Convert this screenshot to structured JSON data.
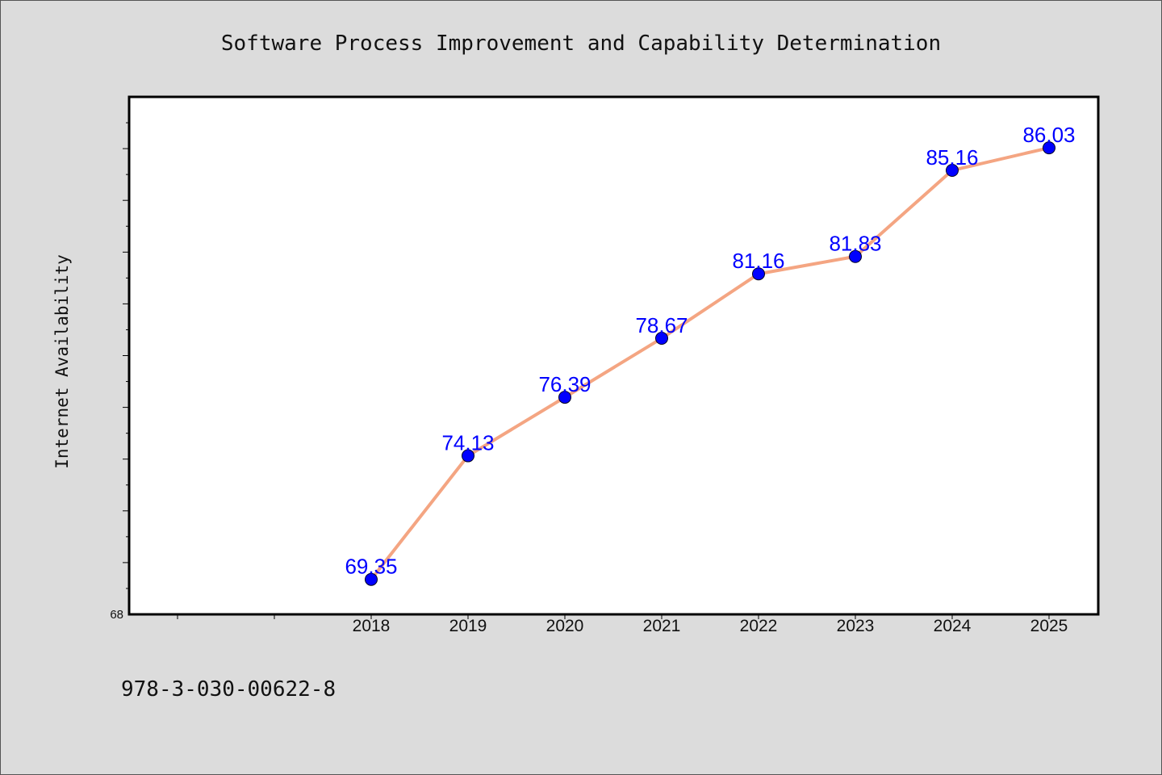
{
  "chart_data": {
    "type": "line",
    "title": "Software Process Improvement and Capability Determination",
    "xlabel": "",
    "ylabel": "Internet Availability",
    "categories": [
      "2018",
      "2019",
      "2020",
      "2021",
      "2022",
      "2023",
      "2024",
      "2025"
    ],
    "series": [
      {
        "values": [
          69.35,
          74.13,
          76.39,
          78.67,
          81.16,
          81.83,
          85.16,
          86.03
        ],
        "line_color": "#f4a582",
        "marker_color": "#0000ff"
      }
    ],
    "data_labels": [
      "69.35",
      "74.13",
      "76.39",
      "78.67",
      "81.16",
      "81.83",
      "85.16",
      "86.03"
    ],
    "ylim": [
      68,
      88
    ],
    "y_tick_labels": [
      "68"
    ],
    "grid": false,
    "legend": "none"
  },
  "footer_text": "978-3-030-00622-8",
  "colors": {
    "background": "#dcdcdc",
    "plot_background": "#ffffff",
    "line": "#f4a582",
    "marker": "#0000ff",
    "data_label": "#0000ff"
  }
}
